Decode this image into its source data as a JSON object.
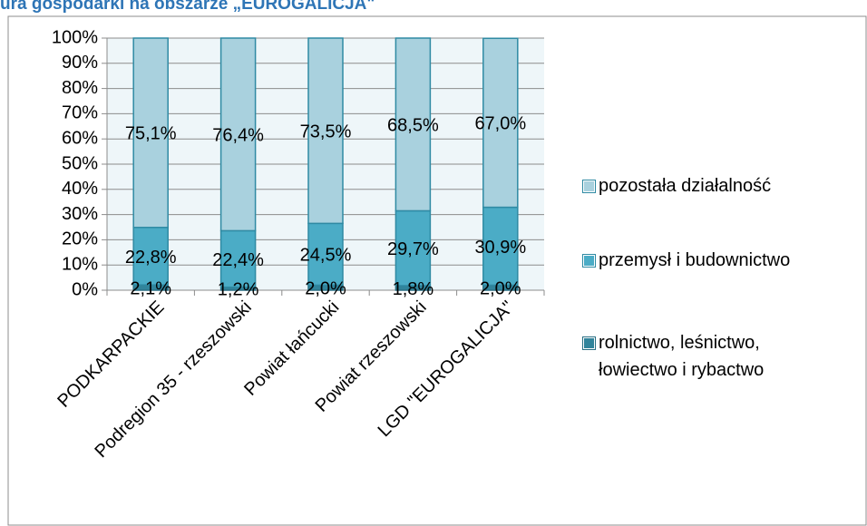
{
  "chart_data": {
    "type": "stacked_bar",
    "title": "ura gospodarki na obszarze „EUROGALICJA\"",
    "categories": [
      "PODKARPACKIE",
      "Podregion 35 - rzeszowski",
      "Powiat łańcucki",
      "Powiat rzeszowski",
      "LGD \"EUROGALICJA\""
    ],
    "series": [
      {
        "name": "rolnictwo, leśnictwo, łowiectwo i rybactwo",
        "color": "#31849b",
        "values": [
          2.1,
          1.2,
          2.0,
          1.8,
          2.0
        ],
        "value_labels": [
          "2,1%",
          "1,2%",
          "2,0%",
          "1,8%",
          "2,0%"
        ]
      },
      {
        "name": "przemysł i budownictwo",
        "color": "#4bacc6",
        "values": [
          22.8,
          22.4,
          24.5,
          29.7,
          30.9
        ],
        "value_labels": [
          "22,8%",
          "22,4%",
          "24,5%",
          "29,7%",
          "30,9%"
        ]
      },
      {
        "name": "pozostała działalność",
        "color": "#a9d1de",
        "values": [
          75.1,
          76.4,
          73.5,
          68.5,
          67.0
        ],
        "value_labels": [
          "75,1%",
          "76,4%",
          "73,5%",
          "68,5%",
          "67,0%"
        ]
      }
    ],
    "ylim": [
      0,
      100
    ],
    "yticks": [
      {
        "value": 0,
        "label": "0%"
      },
      {
        "value": 10,
        "label": "10%"
      },
      {
        "value": 20,
        "label": "20%"
      },
      {
        "value": 30,
        "label": "30%"
      },
      {
        "value": 40,
        "label": "40%"
      },
      {
        "value": 50,
        "label": "50%"
      },
      {
        "value": 60,
        "label": "60%"
      },
      {
        "value": 70,
        "label": "70%"
      },
      {
        "value": 80,
        "label": "80%"
      },
      {
        "value": 90,
        "label": "90%"
      },
      {
        "value": 100,
        "label": "100%"
      }
    ],
    "grid": true
  }
}
